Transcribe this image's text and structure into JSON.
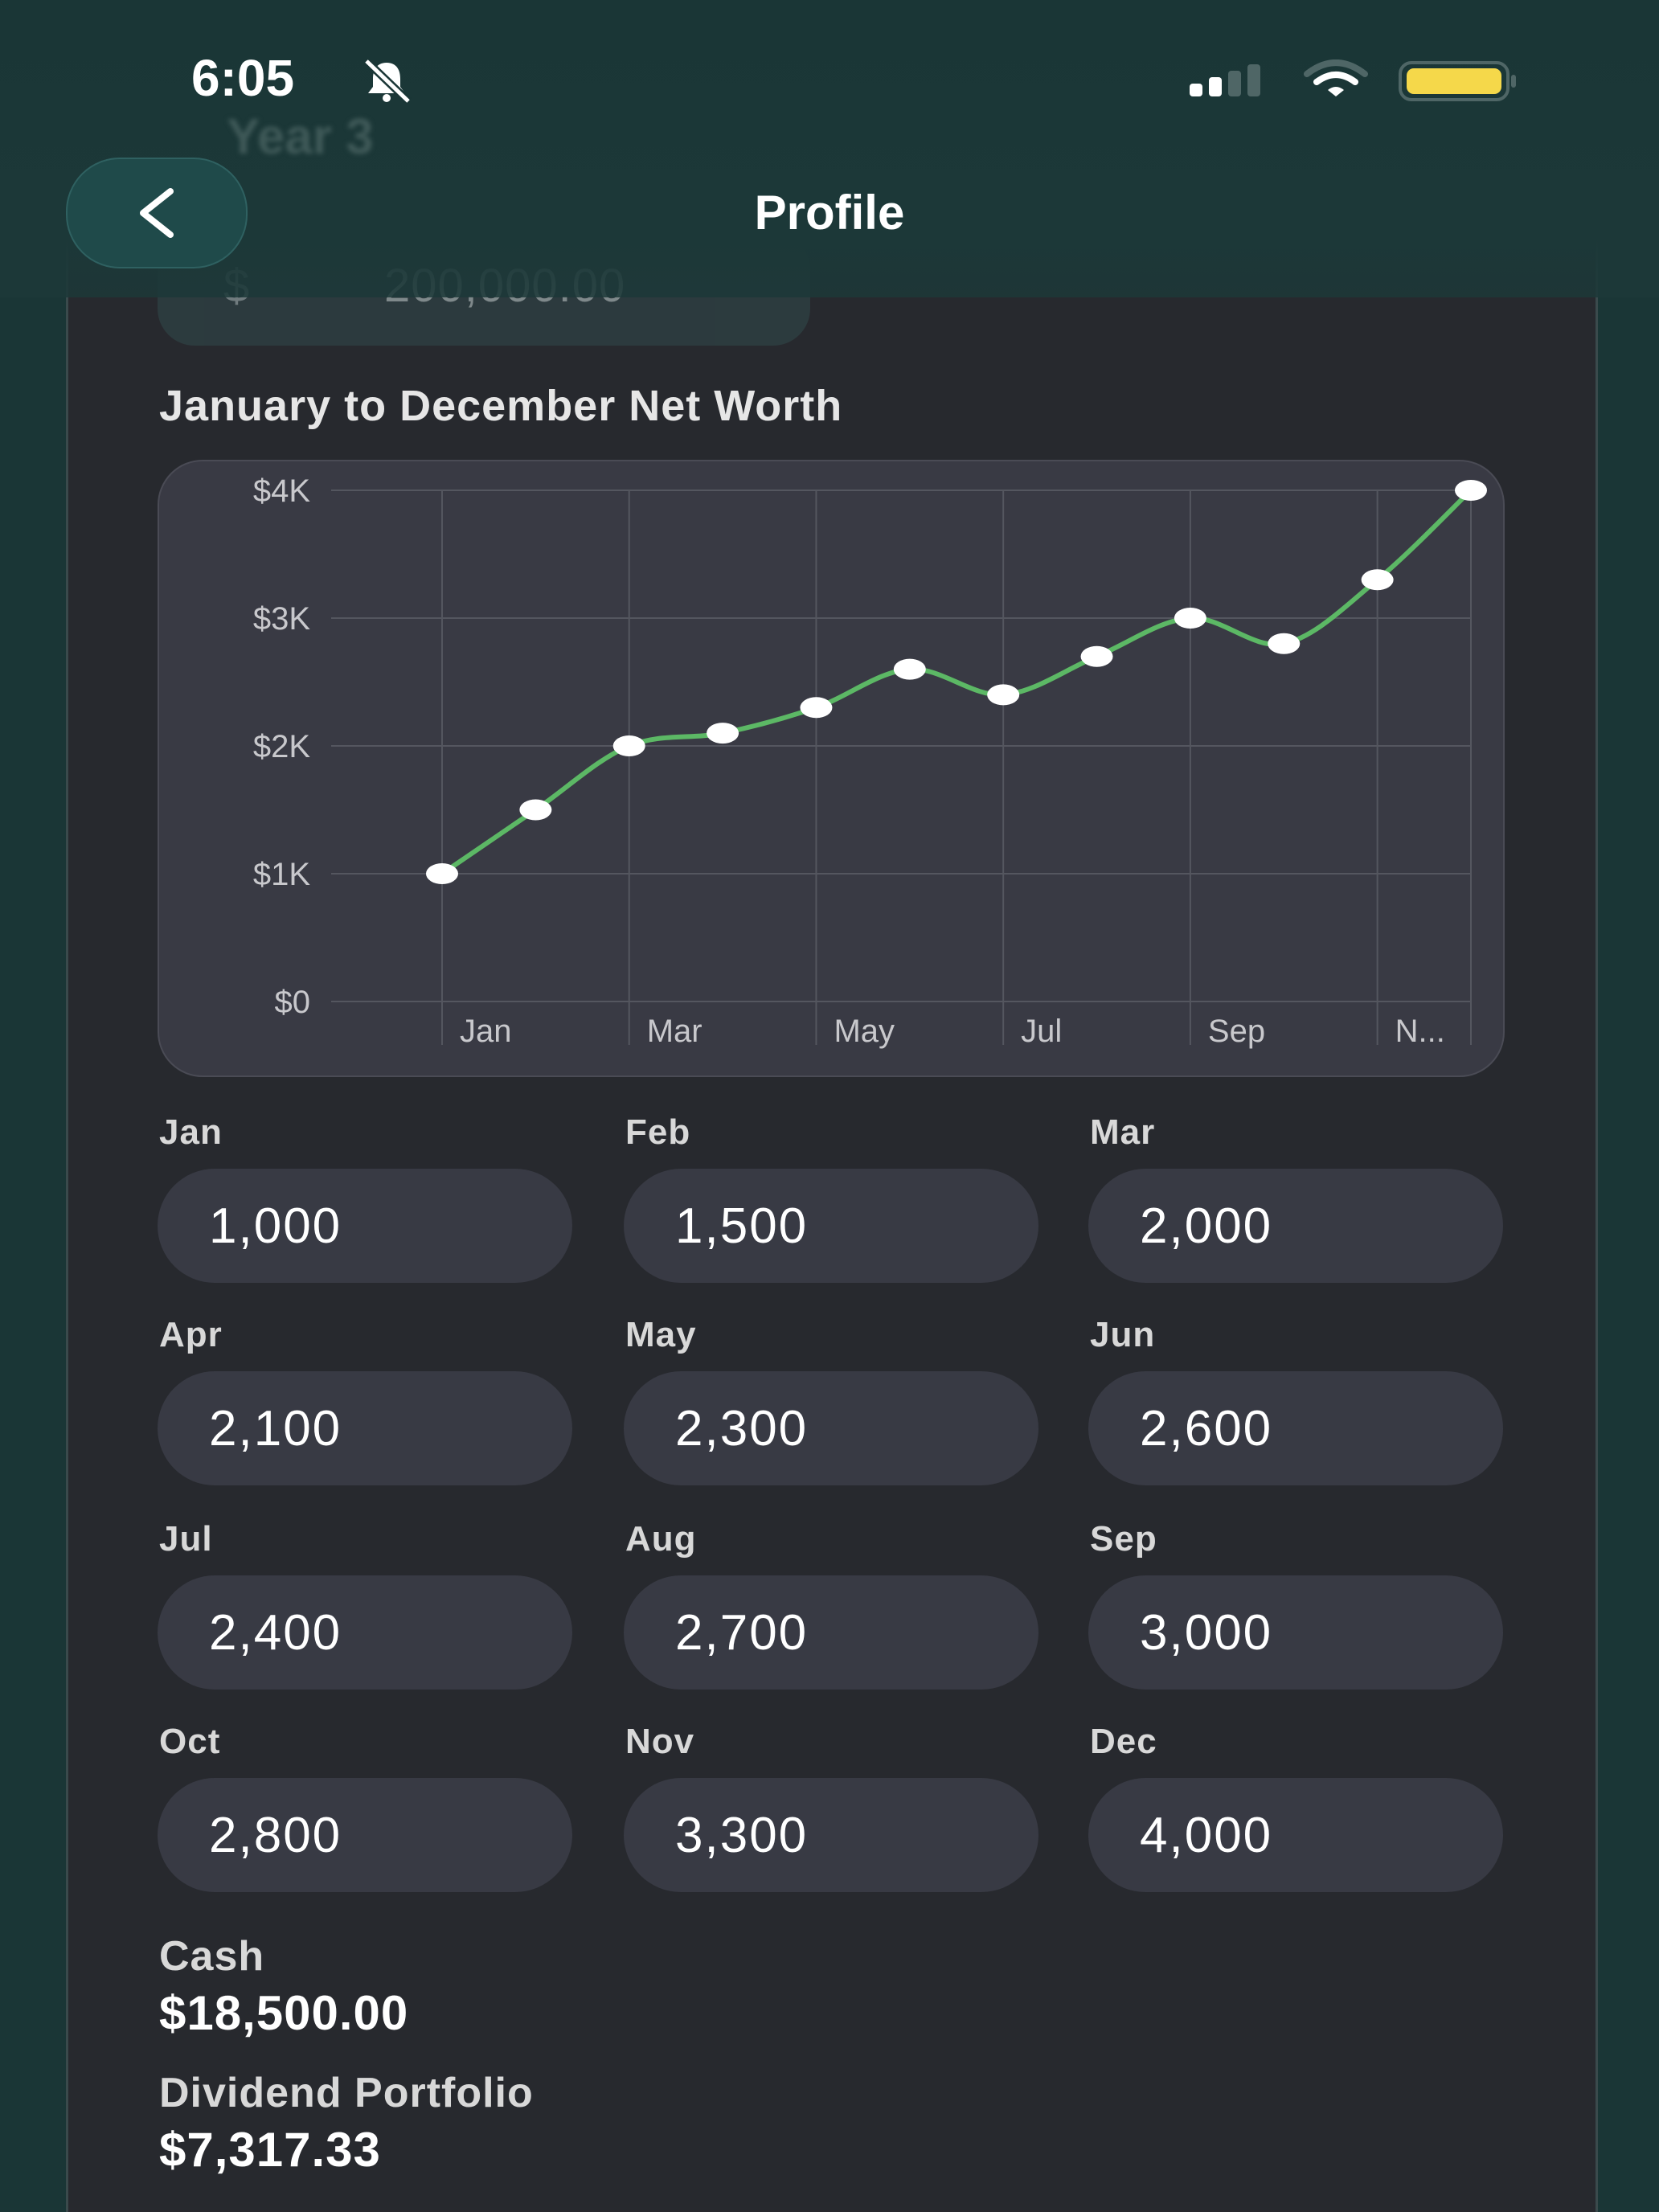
{
  "status_bar": {
    "time": "6:05"
  },
  "header": {
    "title": "Profile",
    "back_icon": "chevron-left-icon"
  },
  "behind_header": {
    "year_label": "Year 3",
    "currency": "$",
    "amount": "200,000.00"
  },
  "chart_data": {
    "type": "line",
    "title": "January to December Net Worth",
    "x": [
      "Jan",
      "Feb",
      "Mar",
      "Apr",
      "May",
      "Jun",
      "Jul",
      "Aug",
      "Sep",
      "Oct",
      "Nov",
      "Dec"
    ],
    "values": [
      1000,
      1500,
      2000,
      2100,
      2300,
      2600,
      2400,
      2700,
      3000,
      2800,
      3300,
      4000
    ],
    "x_tick_labels": [
      "Jan",
      "Mar",
      "May",
      "Jul",
      "Sep",
      "N..."
    ],
    "y_ticks": [
      {
        "value": 0,
        "label": "$0"
      },
      {
        "value": 1000,
        "label": "$1K"
      },
      {
        "value": 2000,
        "label": "$2K"
      },
      {
        "value": 3000,
        "label": "$3K"
      },
      {
        "value": 4000,
        "label": "$4K"
      }
    ],
    "ylim": [
      0,
      4000
    ],
    "line_color": "#5cb865",
    "grid": true
  },
  "months": [
    {
      "label": "Jan",
      "value": "1,000"
    },
    {
      "label": "Feb",
      "value": "1,500"
    },
    {
      "label": "Mar",
      "value": "2,000"
    },
    {
      "label": "Apr",
      "value": "2,100"
    },
    {
      "label": "May",
      "value": "2,300"
    },
    {
      "label": "Jun",
      "value": "2,600"
    },
    {
      "label": "Jul",
      "value": "2,400"
    },
    {
      "label": "Aug",
      "value": "2,700"
    },
    {
      "label": "Sep",
      "value": "3,000"
    },
    {
      "label": "Oct",
      "value": "2,800"
    },
    {
      "label": "Nov",
      "value": "3,300"
    },
    {
      "label": "Dec",
      "value": "4,000"
    }
  ],
  "summary": {
    "cash_label": "Cash",
    "cash_value": "$18,500.00",
    "dividend_label": "Dividend Portfolio",
    "dividend_value": "$7,317.33"
  },
  "colors": {
    "background": "#1a3636",
    "panel": "#27292e",
    "field": "#383a44",
    "battery": "#f5d84a"
  }
}
